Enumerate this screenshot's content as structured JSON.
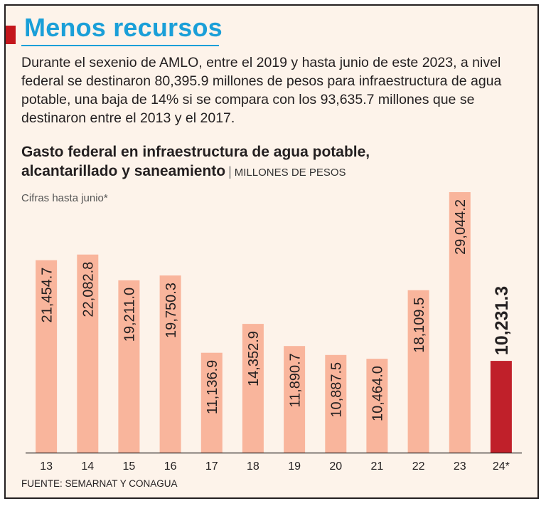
{
  "header": {
    "title": "Menos recursos",
    "intro": "Durante el sexenio de AMLO, entre el 2019 y hasta junio de este 2023, a nivel federal se destinaron 80,395.9 millones de pesos para infraestructura de agua potable, una baja de 14% si se compara con los 93,635.7 millones que se destinaron entre el 2013 y el 2017."
  },
  "chart_data": {
    "type": "bar",
    "title_line1": "Gasto federal en infraestructura de agua potable,",
    "title_line2": "alcantarillado y saneamiento",
    "title_separator": "|",
    "units": "MILLONES DE PESOS",
    "note": "Cifras hasta junio*",
    "categories": [
      "13",
      "14",
      "15",
      "16",
      "17",
      "18",
      "19",
      "20",
      "21",
      "22",
      "23",
      "24*"
    ],
    "values": [
      21454.7,
      22082.8,
      19211.0,
      19750.3,
      11136.9,
      14352.9,
      11890.7,
      10887.5,
      10464.0,
      18109.5,
      29044.2,
      10231.3
    ],
    "labels": [
      "21,454.7",
      "22,082.8",
      "19,211.0",
      "19,750.3",
      "11,136.9",
      "14,352.9",
      "11,890.7",
      "10,887.5",
      "10,464.0",
      "18,109.5",
      "29,044.2",
      "10,231.3"
    ],
    "highlight_index": 11,
    "ylim": [
      0,
      29044.2
    ],
    "colors": {
      "bar": "#f9b59c",
      "highlight": "#c0202a",
      "axis": "#231f20"
    }
  },
  "footer": {
    "source": "FUENTE: SEMARNAT Y CONAGUA"
  }
}
